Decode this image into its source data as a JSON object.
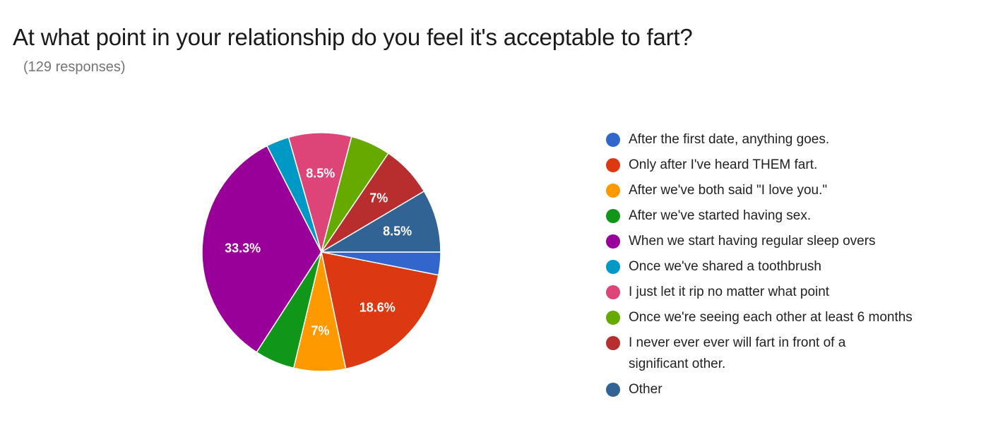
{
  "chart_data": {
    "type": "pie",
    "title": "At what point in your relationship do you feel it's acceptable to fart?",
    "subtitle": "(129 responses)",
    "slices": [
      {
        "label": "After the first date, anything goes.",
        "value": 3.1,
        "color": "#3366cc",
        "display": ""
      },
      {
        "label": "Only after I've heard THEM fart.",
        "value": 18.6,
        "color": "#dc3912",
        "display": "18.6%"
      },
      {
        "label": "After we've both said \"I love you.\"",
        "value": 7,
        "color": "#ff9900",
        "display": "7%"
      },
      {
        "label": "After we've started having sex.",
        "value": 5.4,
        "color": "#109618",
        "display": ""
      },
      {
        "label": "When we start having regular sleep overs",
        "value": 33.3,
        "color": "#990099",
        "display": "33.3%"
      },
      {
        "label": "Once we've shared a toothbrush",
        "value": 3.1,
        "color": "#0099c6",
        "display": ""
      },
      {
        "label": "I just let it rip no matter what point",
        "value": 8.5,
        "color": "#dd4477",
        "display": "8.5%"
      },
      {
        "label": "Once we're seeing each other at least 6 months",
        "value": 5.4,
        "color": "#66aa00",
        "display": ""
      },
      {
        "label": "I never ever ever will fart in front of a significant other.",
        "value": 7,
        "color": "#b82e2e",
        "display": "7%"
      },
      {
        "label": "Other",
        "value": 8.5,
        "color": "#316395",
        "display": "8.5%"
      }
    ],
    "legend_position": "right"
  }
}
